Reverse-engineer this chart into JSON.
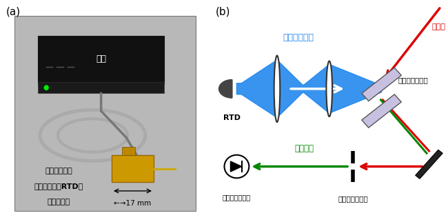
{
  "panel_a_label": "(a)",
  "panel_b_label": "(b)",
  "label_fontsize": 11,
  "bg_color": "#ffffff",
  "photo_bg": "#b0b0b0",
  "thz_color": "#2288ee",
  "thz_label": "テラヘルツ波",
  "thz_label_color": "#2288ee",
  "excitation_label": "励起光",
  "excitation_color": "#dd0000",
  "nir_label": "近赤外光",
  "nir_color": "#008800",
  "crystal_label": "非線形光学結晶",
  "detector_label": "近赤外光検出器",
  "filter_label": "空間フィルター",
  "rtd_label": "RTD",
  "module_label_1": "共鳴トンネル",
  "module_label_2": "ダイオード（RTD）",
  "module_label_3": "モジュール",
  "power_label": "電源",
  "crystal_fill": "#c8c0e0",
  "crystal_edge": "#555555",
  "mirror_color": "#222222"
}
